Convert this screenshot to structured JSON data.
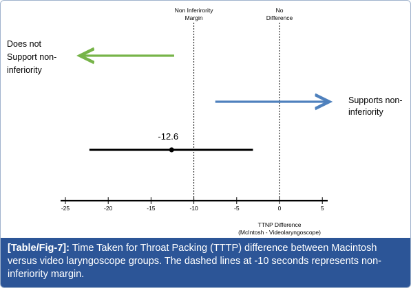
{
  "chart_data": {
    "type": "forest",
    "xlabel_lines": [
      "TTNP Difference",
      "(McIntosh - Videolaryngoscope)"
    ],
    "ticks": [
      -25,
      -20,
      -15,
      -10,
      -5,
      0,
      5
    ],
    "tick_labels": [
      "-25",
      "-20",
      "-15",
      "-10",
      "-5",
      "0",
      "5"
    ],
    "xlim": [
      -26,
      5.5
    ],
    "point": {
      "estimate": -12.6,
      "ci_low": -22.2,
      "ci_high": -3.1,
      "label": "-12.6"
    },
    "reference_lines": [
      {
        "x": -10,
        "label_lines": [
          "Non Inferirority",
          "Margin"
        ]
      },
      {
        "x": 0,
        "label_lines": [
          "No",
          "Difference"
        ]
      }
    ],
    "annotations": [
      {
        "text_lines": [
          "Does not",
          "Support non-",
          "inferiority"
        ],
        "arrow": {
          "from": -12.3,
          "to": -23.5,
          "color": "#77b449"
        }
      },
      {
        "text_lines": [
          "Supports non-",
          "inferiority"
        ],
        "arrow": {
          "from": -7.5,
          "to": 6.0,
          "color": "#4f81bd"
        }
      }
    ]
  },
  "caption": {
    "label": "[Table/Fig-7]:",
    "text": " Time Taken for Throat Packing (TTTP) difference between Macintosh versus video laryngoscope groups. The dashed lines at -10 seconds represents non-inferiority margin."
  }
}
